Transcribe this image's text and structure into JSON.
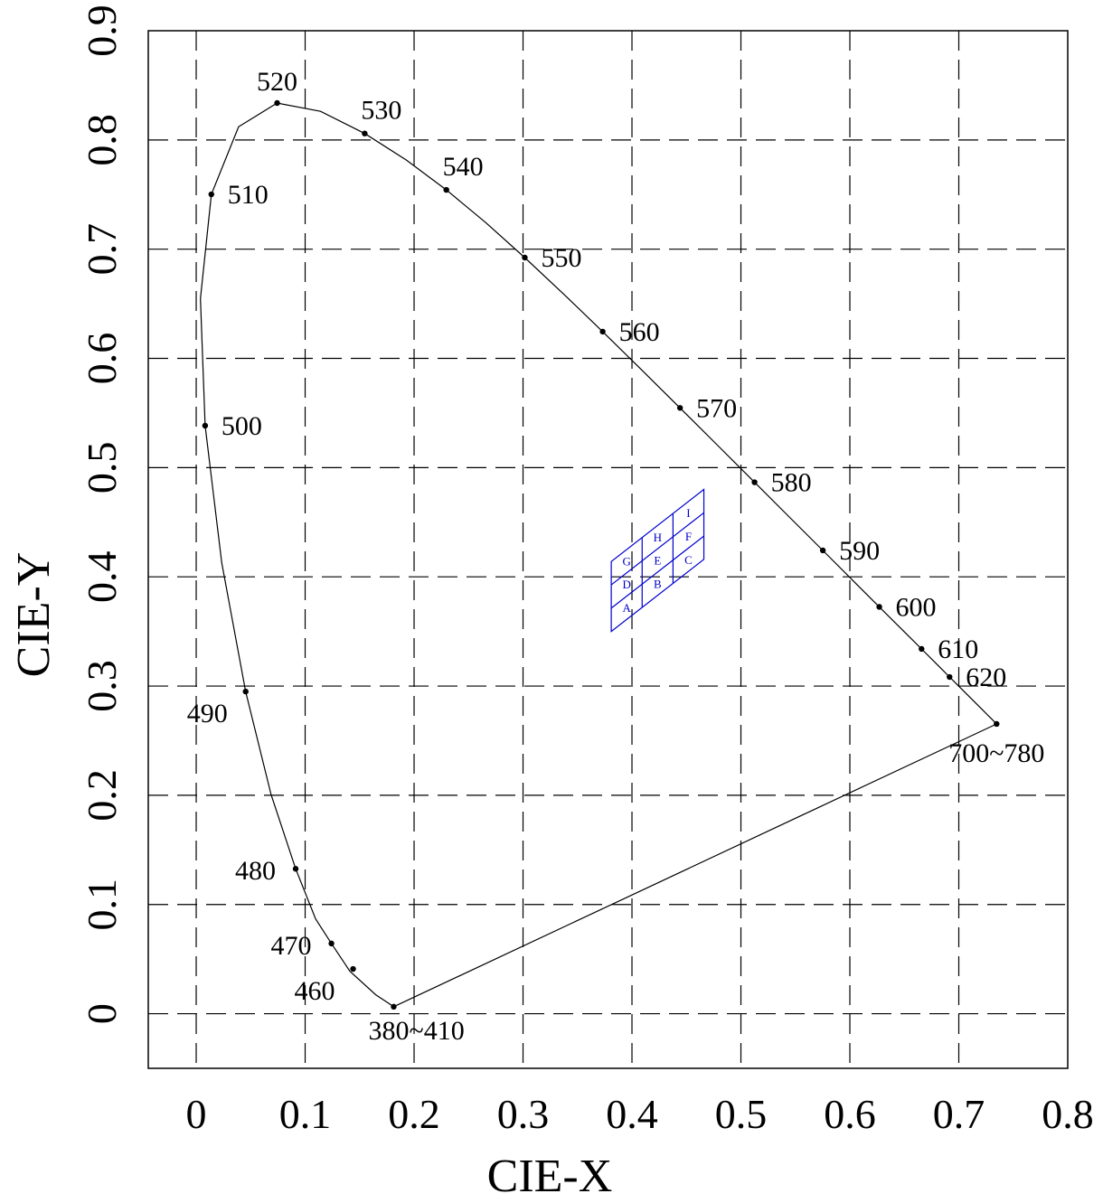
{
  "chart_data": {
    "type": "scatter",
    "title": "",
    "xlabel": "CIE-X",
    "ylabel": "CIE-Y",
    "xlim": [
      -0.044,
      0.8
    ],
    "ylim": [
      -0.05,
      0.9
    ],
    "xticks": [
      "0",
      "0.1",
      "0.2",
      "0.3",
      "0.4",
      "0.5",
      "0.6",
      "0.7",
      "0.8"
    ],
    "yticks": [
      "0",
      "0.1",
      "0.2",
      "0.3",
      "0.4",
      "0.5",
      "0.6",
      "0.7",
      "0.8",
      "0.9"
    ],
    "xtick_values": [
      0,
      0.1,
      0.2,
      0.3,
      0.4,
      0.5,
      0.6,
      0.7,
      0.8
    ],
    "ytick_values": [
      0,
      0.1,
      0.2,
      0.3,
      0.4,
      0.5,
      0.6,
      0.7,
      0.8,
      0.9
    ],
    "grid": true,
    "locus": [
      [
        0.1813,
        0.0064
      ],
      [
        0.1648,
        0.0174
      ],
      [
        0.1411,
        0.0389
      ],
      [
        0.1241,
        0.0643
      ],
      [
        0.1096,
        0.0868
      ],
      [
        0.0913,
        0.1327
      ],
      [
        0.0687,
        0.2007
      ],
      [
        0.0454,
        0.295
      ],
      [
        0.0235,
        0.4127
      ],
      [
        0.0082,
        0.5384
      ],
      [
        0.0039,
        0.6548
      ],
      [
        0.0139,
        0.7502
      ],
      [
        0.0389,
        0.812
      ],
      [
        0.0743,
        0.8338
      ],
      [
        0.1142,
        0.8262
      ],
      [
        0.1547,
        0.8059
      ],
      [
        0.1929,
        0.7816
      ],
      [
        0.2296,
        0.7543
      ],
      [
        0.2658,
        0.7243
      ],
      [
        0.3016,
        0.6923
      ],
      [
        0.3373,
        0.6589
      ],
      [
        0.3731,
        0.6245
      ],
      [
        0.4087,
        0.5896
      ],
      [
        0.4441,
        0.5547
      ],
      [
        0.4788,
        0.5202
      ],
      [
        0.5125,
        0.4866
      ],
      [
        0.5448,
        0.4544
      ],
      [
        0.5752,
        0.4242
      ],
      [
        0.6029,
        0.3965
      ],
      [
        0.627,
        0.3725
      ],
      [
        0.6482,
        0.3514
      ],
      [
        0.6658,
        0.334
      ],
      [
        0.6801,
        0.3197
      ],
      [
        0.6915,
        0.3083
      ],
      [
        0.7006,
        0.2993
      ],
      [
        0.7079,
        0.292
      ],
      [
        0.714,
        0.2859
      ],
      [
        0.719,
        0.2809
      ],
      [
        0.723,
        0.277
      ],
      [
        0.726,
        0.274
      ],
      [
        0.7283,
        0.2717
      ],
      [
        0.73,
        0.27
      ],
      [
        0.7347,
        0.2653
      ]
    ],
    "wavelength_points": [
      {
        "label": "380~410",
        "x": 0.1813,
        "y": 0.0064,
        "anchor": "below-right"
      },
      {
        "label": "460",
        "x": 0.144,
        "y": 0.041,
        "anchor": "below-left"
      },
      {
        "label": "470",
        "x": 0.1241,
        "y": 0.0643,
        "anchor": "left"
      },
      {
        "label": "480",
        "x": 0.0913,
        "y": 0.1327,
        "anchor": "left"
      },
      {
        "label": "490",
        "x": 0.0454,
        "y": 0.295,
        "anchor": "below-left"
      },
      {
        "label": "500",
        "x": 0.0082,
        "y": 0.5384,
        "anchor": "right"
      },
      {
        "label": "510",
        "x": 0.0139,
        "y": 0.7502,
        "anchor": "right"
      },
      {
        "label": "520",
        "x": 0.0743,
        "y": 0.8338,
        "anchor": "above"
      },
      {
        "label": "530",
        "x": 0.1547,
        "y": 0.8059,
        "anchor": "above-right"
      },
      {
        "label": "540",
        "x": 0.2296,
        "y": 0.7543,
        "anchor": "above-right"
      },
      {
        "label": "550",
        "x": 0.3016,
        "y": 0.6923,
        "anchor": "right"
      },
      {
        "label": "560",
        "x": 0.3731,
        "y": 0.6245,
        "anchor": "right"
      },
      {
        "label": "570",
        "x": 0.4441,
        "y": 0.5547,
        "anchor": "right"
      },
      {
        "label": "580",
        "x": 0.5125,
        "y": 0.4866,
        "anchor": "right"
      },
      {
        "label": "590",
        "x": 0.5752,
        "y": 0.4242,
        "anchor": "right"
      },
      {
        "label": "600",
        "x": 0.627,
        "y": 0.3725,
        "anchor": "right"
      },
      {
        "label": "610",
        "x": 0.6658,
        "y": 0.334,
        "anchor": "right"
      },
      {
        "label": "620",
        "x": 0.6915,
        "y": 0.3083,
        "anchor": "right"
      },
      {
        "label": "700~780",
        "x": 0.7347,
        "y": 0.2653,
        "anchor": "below"
      }
    ],
    "bins": {
      "color": "#0000cc",
      "quadrilateral": [
        [
          0.381,
          0.35
        ],
        [
          0.466,
          0.416
        ],
        [
          0.466,
          0.48
        ],
        [
          0.381,
          0.414
        ]
      ],
      "rows": 3,
      "cols": 3,
      "labels": [
        {
          "text": "A",
          "row": 0,
          "col": 0
        },
        {
          "text": "B",
          "row": 0,
          "col": 1
        },
        {
          "text": "C",
          "row": 0,
          "col": 2
        },
        {
          "text": "D",
          "row": 1,
          "col": 0
        },
        {
          "text": "E",
          "row": 1,
          "col": 1
        },
        {
          "text": "F",
          "row": 1,
          "col": 2
        },
        {
          "text": "G",
          "row": 2,
          "col": 0
        },
        {
          "text": "H",
          "row": 2,
          "col": 1
        },
        {
          "text": "I",
          "row": 2,
          "col": 2
        }
      ]
    }
  }
}
